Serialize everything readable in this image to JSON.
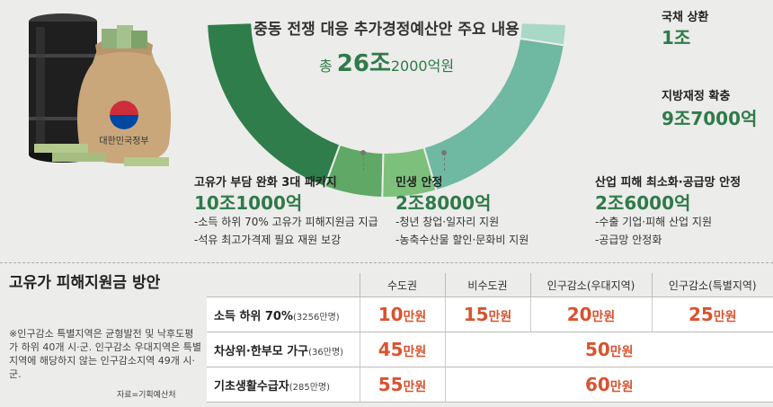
{
  "chart_data": {
    "type": "pie",
    "title": "중동 전쟁 대응 추가경정예산안 주요 내용",
    "total_label": "총",
    "total_big": "26조",
    "total_small": "2000억원",
    "slices": [
      {
        "label": "고유가 부담 완화 3대 패키지",
        "value_text": "10조1000억",
        "value": 101000,
        "color": "#2e7d4a"
      },
      {
        "label": "민생 안정",
        "value_text": "2조8000억",
        "value": 28000,
        "color": "#5fa865"
      },
      {
        "label": "산업 피해 최소화·공급망 안정",
        "value_text": "2조6000억",
        "value": 26000,
        "color": "#7dc07c"
      },
      {
        "label": "지방재정 확충",
        "value_text": "9조7000억",
        "value": 97000,
        "color": "#6fb8a2"
      },
      {
        "label": "국채 상환",
        "value_text": "1조",
        "value": 10000,
        "color": "#a8d8c6"
      }
    ],
    "subitems": {
      "package": [
        "-소득 하위 70% 고유가 피해지원금 지급",
        "-석유 최고가격제 필요 재원 보강"
      ],
      "livelihood": [
        "-청년 창업·일자리 지원",
        "-농축수산물 할인·문화비 지원"
      ],
      "industry": [
        "-수출 기업·피해 산업 지원",
        "-공급망 안정화"
      ]
    }
  },
  "table": {
    "title": "고유가 피해지원금 방안",
    "columns": [
      "수도권",
      "비수도권",
      "인구감소(우대지역)",
      "인구감소(특별지역)"
    ],
    "rows": [
      {
        "label": "소득 하위 70%",
        "note": "(3256만명)",
        "values": [
          "10",
          "15",
          "20",
          "25"
        ]
      },
      {
        "label": "차상위·한부모 가구",
        "note": "(36만명)",
        "values": [
          "45",
          "50"
        ]
      },
      {
        "label": "기초생활수급자",
        "note": "(285만명)",
        "values": [
          "55",
          "60"
        ]
      }
    ],
    "unit": "만원"
  },
  "footnote": "※인구감소 특별지역은 균형발전 및 낙후도평가 하위 40개 시·군. 인구감소 우대지역은 특별지역에 해당하지 않는 인구감소지역 49개 시·군.",
  "source": "자료=기획예산처",
  "bag_text": "대한민국정부",
  "colors": {
    "accent": "#2f7a4a",
    "amount": "#d8532e"
  }
}
